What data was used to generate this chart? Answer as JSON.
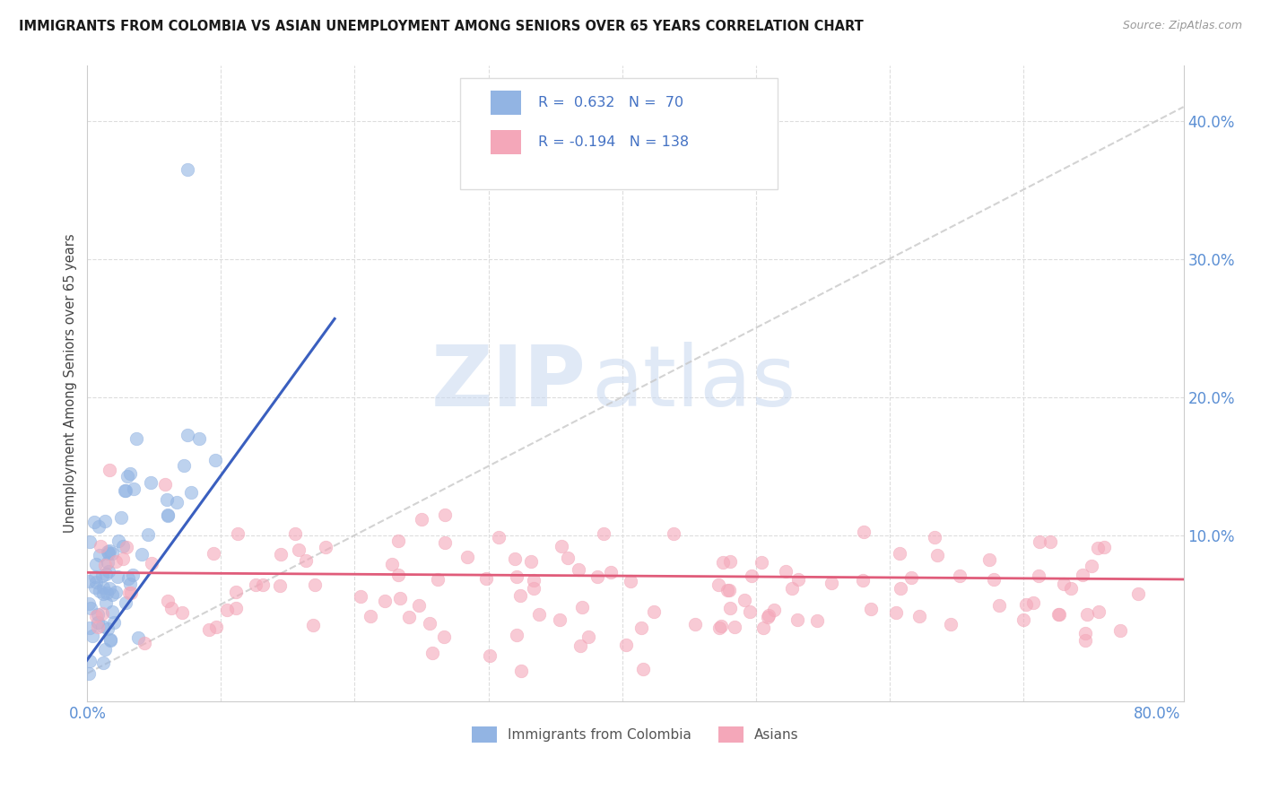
{
  "title": "IMMIGRANTS FROM COLOMBIA VS ASIAN UNEMPLOYMENT AMONG SENIORS OVER 65 YEARS CORRELATION CHART",
  "source": "Source: ZipAtlas.com",
  "ylabel": "Unemployment Among Seniors over 65 years",
  "xlim": [
    0.0,
    0.82
  ],
  "ylim": [
    -0.02,
    0.44
  ],
  "xticks": [
    0.0,
    0.1,
    0.2,
    0.3,
    0.4,
    0.5,
    0.6,
    0.7,
    0.8
  ],
  "xticklabels": [
    "0.0%",
    "",
    "",
    "",
    "",
    "",
    "",
    "",
    "80.0%"
  ],
  "yticks": [
    0.0,
    0.1,
    0.2,
    0.3,
    0.4
  ],
  "yticklabels": [
    "",
    "10.0%",
    "20.0%",
    "30.0%",
    "40.0%"
  ],
  "color_blue": "#92B4E3",
  "color_pink": "#F4A7B9",
  "line_blue": "#3A5FBF",
  "line_pink": "#E05C7A",
  "line_dashed": "#C8C8C8",
  "watermark_zip": "ZIP",
  "watermark_atlas": "atlas",
  "R1": 0.632,
  "N1": 70,
  "R2": -0.194,
  "N2": 138,
  "title_color": "#1a1a1a",
  "axis_label_color": "#444444",
  "tick_color": "#5B8FD4",
  "background_color": "#ffffff",
  "grid_color": "#dddddd",
  "legend_text_color": "#4472C4",
  "source_color": "#999999"
}
